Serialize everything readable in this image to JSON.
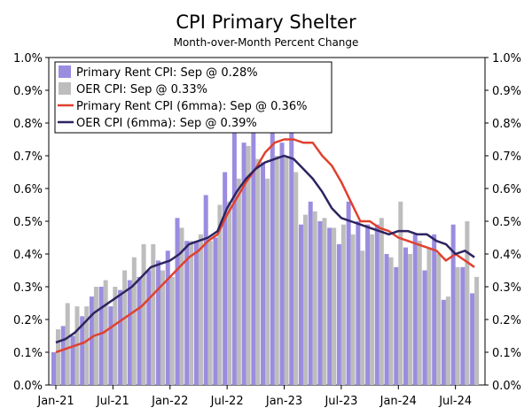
{
  "chart_data": {
    "type": "bar+line",
    "title": "CPI Primary Shelter",
    "subtitle": "Month-over-Month Percent Change",
    "x_tick_labels": [
      "Jan-21",
      "Jul-21",
      "Jan-22",
      "Jul-22",
      "Jan-23",
      "Jul-23",
      "Jan-24",
      "Jul-24"
    ],
    "y_tick_labels": [
      "0.0%",
      "0.1%",
      "0.2%",
      "0.3%",
      "0.4%",
      "0.5%",
      "0.6%",
      "0.7%",
      "0.8%",
      "0.9%",
      "1.0%"
    ],
    "ylim": [
      0,
      1.0
    ],
    "months": [
      "2021-01",
      "2021-02",
      "2021-03",
      "2021-04",
      "2021-05",
      "2021-06",
      "2021-07",
      "2021-08",
      "2021-09",
      "2021-10",
      "2021-11",
      "2021-12",
      "2022-01",
      "2022-02",
      "2022-03",
      "2022-04",
      "2022-05",
      "2022-06",
      "2022-07",
      "2022-08",
      "2022-09",
      "2022-10",
      "2022-11",
      "2022-12",
      "2023-01",
      "2023-02",
      "2023-03",
      "2023-04",
      "2023-05",
      "2023-06",
      "2023-07",
      "2023-08",
      "2023-09",
      "2023-10",
      "2023-11",
      "2023-12",
      "2024-01",
      "2024-02",
      "2024-03",
      "2024-04",
      "2024-05",
      "2024-06",
      "2024-07",
      "2024-08",
      "2024-09"
    ],
    "legend_position": "top-left",
    "series": [
      {
        "name": "Primary Rent CPI: Sep @ 0.28%",
        "kind": "bar",
        "color": "#9b8ce0",
        "values": [
          0.1,
          0.18,
          0.15,
          0.21,
          0.27,
          0.3,
          0.24,
          0.29,
          0.32,
          0.33,
          0.35,
          0.38,
          0.41,
          0.51,
          0.44,
          0.44,
          0.58,
          0.45,
          0.65,
          0.77,
          0.74,
          0.79,
          0.68,
          0.78,
          0.74,
          0.77,
          0.49,
          0.56,
          0.5,
          0.48,
          0.43,
          0.56,
          0.5,
          0.49,
          0.49,
          0.4,
          0.36,
          0.42,
          0.46,
          0.35,
          0.46,
          0.26,
          0.49,
          0.36,
          0.28
        ]
      },
      {
        "name": "OER CPI: Sep @ 0.33%",
        "kind": "bar",
        "color": "#bdbdbd",
        "values": [
          0.17,
          0.25,
          0.24,
          0.24,
          0.3,
          0.32,
          0.3,
          0.35,
          0.39,
          0.43,
          0.43,
          0.35,
          0.33,
          0.48,
          0.44,
          0.46,
          0.44,
          0.55,
          0.56,
          0.63,
          0.73,
          0.69,
          0.63,
          0.7,
          0.7,
          0.65,
          0.52,
          0.53,
          0.51,
          0.48,
          0.49,
          0.46,
          0.41,
          0.46,
          0.51,
          0.39,
          0.56,
          0.4,
          0.44,
          0.42,
          0.4,
          0.27,
          0.36,
          0.5,
          0.33
        ]
      },
      {
        "name": "Primary Rent CPI (6mma): Sep @ 0.36%",
        "kind": "line",
        "color": "#e0412f",
        "values": [
          0.1,
          0.11,
          0.12,
          0.13,
          0.15,
          0.16,
          0.18,
          0.2,
          0.22,
          0.24,
          0.27,
          0.3,
          0.33,
          0.36,
          0.39,
          0.41,
          0.44,
          0.46,
          0.52,
          0.57,
          0.62,
          0.66,
          0.71,
          0.74,
          0.75,
          0.75,
          0.74,
          0.74,
          0.7,
          0.67,
          0.62,
          0.56,
          0.5,
          0.5,
          0.48,
          0.47,
          0.45,
          0.44,
          0.43,
          0.42,
          0.41,
          0.38,
          0.4,
          0.38,
          0.36
        ]
      },
      {
        "name": "OER CPI (6mma): Sep @ 0.39%",
        "kind": "line",
        "color": "#2c2460",
        "values": [
          0.13,
          0.14,
          0.16,
          0.19,
          0.22,
          0.24,
          0.26,
          0.28,
          0.3,
          0.33,
          0.36,
          0.37,
          0.38,
          0.4,
          0.43,
          0.44,
          0.45,
          0.47,
          0.54,
          0.59,
          0.63,
          0.66,
          0.68,
          0.69,
          0.7,
          0.69,
          0.66,
          0.63,
          0.59,
          0.54,
          0.51,
          0.5,
          0.49,
          0.48,
          0.47,
          0.46,
          0.47,
          0.47,
          0.46,
          0.46,
          0.44,
          0.43,
          0.4,
          0.41,
          0.39
        ]
      }
    ]
  }
}
